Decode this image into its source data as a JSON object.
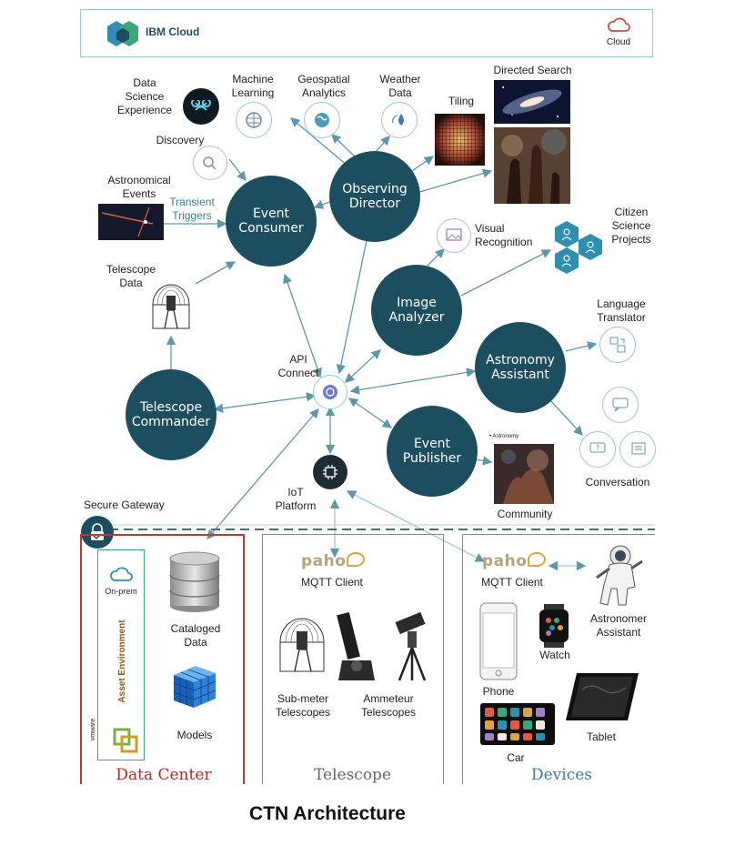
{
  "header": {
    "brand": "IBM Cloud",
    "cloud_label": "Cloud"
  },
  "hubs": {
    "observing_director": [
      "Observing",
      "Director"
    ],
    "event_consumer": [
      "Event",
      "Consumer"
    ],
    "image_analyzer": [
      "Image",
      "Analyzer"
    ],
    "astronomy_assistant": [
      "Astronomy",
      "Assistant"
    ],
    "telescope_commander": [
      "Telescope",
      "Commander"
    ],
    "event_publisher": [
      "Event",
      "Publisher"
    ]
  },
  "labels": {
    "data_science": [
      "Data",
      "Science",
      "Experience"
    ],
    "machine_learning": [
      "Machine",
      "Learning"
    ],
    "geospatial": [
      "Geospatial",
      "Analytics"
    ],
    "weather": [
      "Weather",
      "Data"
    ],
    "tiling": "Tiling",
    "directed_search": "Directed Search",
    "discovery": "Discovery",
    "astro_events": [
      "Astronomical",
      "Events"
    ],
    "transient_triggers": [
      "Transient",
      "Triggers"
    ],
    "citizen_science": [
      "Citizen",
      "Science",
      "Projects"
    ],
    "visual_recognition": [
      "Visual",
      "Recognition"
    ],
    "telescope_data": [
      "Telescope",
      "Data"
    ],
    "language_translator": [
      "Language",
      "Translator"
    ],
    "api_connect": [
      "API",
      "Connect"
    ],
    "conversation": "Conversation",
    "astronomy_tag": "• Astronomy",
    "community": "Community",
    "iot_platform": [
      "IoT",
      "Platform"
    ],
    "secure_gateway": "Secure Gateway"
  },
  "data_center": {
    "title": "Data Center",
    "on_prem": "On-prem",
    "asset_environment": "Asset Environment",
    "vmware": "vmware",
    "cataloged": [
      "Cataloged",
      "Data"
    ],
    "models": "Models"
  },
  "telescope_panel": {
    "title": "Telescope",
    "paho": "paho",
    "mqtt": "MQTT Client",
    "submeter": [
      "Sub-meter",
      "Telescopes"
    ],
    "ammeteur": [
      "Ammeteur",
      "Telescopes"
    ]
  },
  "devices": {
    "title": "Devices",
    "paho": "paho",
    "mqtt": "MQTT Client",
    "astronomer": [
      "Astronomer",
      "Assistant"
    ],
    "watch": "Watch",
    "phone": "Phone",
    "tablet": "Tablet",
    "car": "Car"
  },
  "caption": "CTN Architecture",
  "colors": {
    "hub": "#1d4e5f",
    "arrow": "#5f97aa",
    "panel_border": "#c0392b",
    "icon_ring": "#9cc9d6",
    "dashed_line": "#3d6f80"
  }
}
